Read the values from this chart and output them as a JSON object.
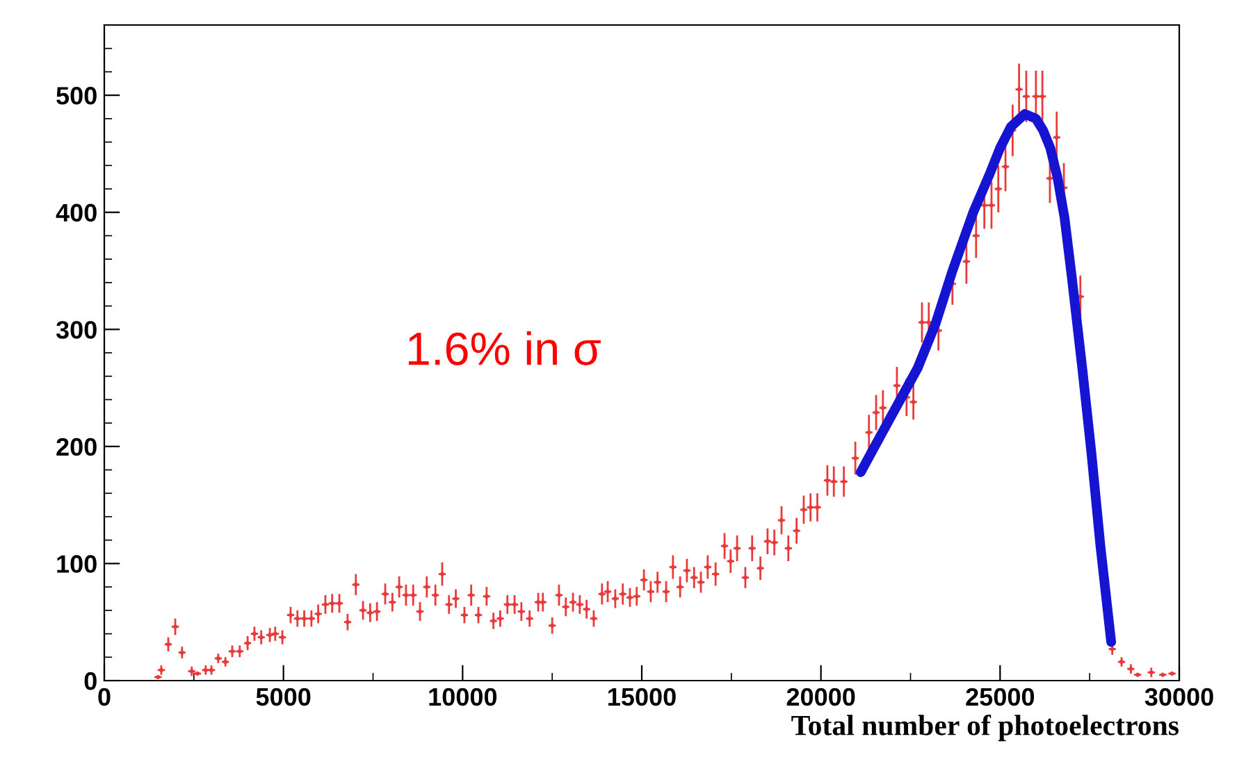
{
  "chart_data": {
    "type": "scatter",
    "xlabel": "Total number of photoelectrons",
    "xlim": [
      0,
      30000
    ],
    "ylim": [
      0,
      560
    ],
    "xticks": [
      0,
      5000,
      10000,
      15000,
      20000,
      25000,
      30000
    ],
    "yticks": [
      0,
      100,
      200,
      300,
      400,
      500
    ],
    "annotations": [
      "1.6% in σ"
    ],
    "grid": false,
    "legend": false,
    "series": [
      {
        "color": "#e83a3a",
        "x": [
          1500,
          1590,
          1785,
          1980,
          2170,
          2440,
          2600,
          2830,
          2990,
          3180,
          3380,
          3570,
          3780,
          4000,
          4190,
          4380,
          4620,
          4770,
          4970,
          5200,
          5390,
          5580,
          5780,
          5970,
          6170,
          6360,
          6560,
          6790,
          7020,
          7220,
          7420,
          7610,
          7840,
          8040,
          8230,
          8420,
          8620,
          8810,
          9000,
          9240,
          9430,
          9620,
          9810,
          10050,
          10240,
          10440,
          10670,
          10860,
          11050,
          11250,
          11450,
          11640,
          11870,
          12110,
          12240,
          12500,
          12690,
          12880,
          13080,
          13270,
          13460,
          13660,
          13890,
          14050,
          14260,
          14470,
          14670,
          14860,
          15060,
          15250,
          15440,
          15680,
          15870,
          16070,
          16260,
          16460,
          16650,
          16840,
          17060,
          17310,
          17480,
          17660,
          17890,
          18080,
          18310,
          18510,
          18700,
          18900,
          19090,
          19320,
          19520,
          19710,
          19900,
          20180,
          20360,
          20640,
          20960,
          21340,
          21540,
          21730,
          22120,
          22390,
          22580,
          22820,
          23010,
          23280,
          23670,
          24060,
          24330,
          24560,
          24760,
          24950,
          25150,
          25350,
          25530,
          25730,
          26000,
          26180,
          26390,
          26580,
          26780,
          27240,
          28130,
          28390,
          28650,
          28840,
          29220,
          29540,
          29800
        ],
        "values": [
          3,
          9,
          31,
          46,
          24,
          8,
          6,
          9,
          9,
          19,
          16,
          25,
          25,
          32,
          40,
          37,
          39,
          40,
          37,
          56,
          53,
          53,
          53,
          57,
          65,
          66,
          66,
          50,
          82,
          60,
          58,
          59,
          74,
          67,
          80,
          73,
          73,
          59,
          80,
          73,
          91,
          65,
          70,
          56,
          73,
          56,
          72,
          51,
          53,
          65,
          65,
          59,
          53,
          67,
          67,
          47,
          73,
          63,
          67,
          65,
          61,
          53,
          74,
          76,
          70,
          74,
          71,
          72,
          86,
          76,
          84,
          76,
          97,
          80,
          94,
          88,
          84,
          97,
          91,
          115,
          102,
          113,
          88,
          113,
          96,
          119,
          118,
          137,
          113,
          128,
          146,
          148,
          148,
          171,
          170,
          170,
          190,
          212,
          229,
          233,
          252,
          242,
          238,
          306,
          306,
          299,
          339,
          358,
          380,
          406,
          406,
          420,
          439,
          470,
          505,
          499,
          499,
          499,
          429,
          464,
          421,
          328,
          27,
          16,
          10,
          5,
          7,
          5,
          6
        ],
        "errors": [
          null,
          4,
          6,
          7,
          5,
          4,
          null,
          4,
          4,
          4,
          4,
          5,
          5,
          6,
          6,
          6,
          6,
          6,
          6,
          7,
          7,
          7,
          7,
          8,
          8,
          8,
          8,
          7,
          9,
          8,
          8,
          8,
          9,
          8,
          9,
          9,
          9,
          8,
          9,
          9,
          10,
          8,
          8,
          7,
          9,
          7,
          8,
          7,
          7,
          8,
          8,
          8,
          7,
          8,
          8,
          7,
          9,
          8,
          8,
          8,
          8,
          7,
          9,
          9,
          8,
          9,
          8,
          8,
          9,
          9,
          9,
          9,
          10,
          9,
          10,
          9,
          9,
          10,
          10,
          11,
          10,
          11,
          9,
          11,
          10,
          11,
          11,
          12,
          11,
          11,
          12,
          12,
          12,
          13,
          13,
          13,
          14,
          15,
          15,
          15,
          16,
          16,
          15,
          17,
          17,
          17,
          18,
          19,
          19,
          20,
          20,
          20,
          21,
          22,
          22,
          22,
          22,
          22,
          21,
          22,
          21,
          18,
          5,
          4,
          4,
          null,
          4,
          null,
          null
        ],
        "xerrors": [
          100,
          100,
          100,
          100,
          100,
          100,
          100,
          100,
          100,
          100,
          100,
          100,
          100,
          100,
          100,
          100,
          100,
          100,
          100,
          100,
          100,
          100,
          100,
          100,
          100,
          100,
          100,
          100,
          100,
          100,
          100,
          100,
          100,
          100,
          100,
          100,
          100,
          100,
          100,
          100,
          100,
          100,
          100,
          100,
          100,
          100,
          100,
          100,
          100,
          100,
          100,
          100,
          100,
          100,
          100,
          100,
          100,
          100,
          100,
          100,
          100,
          100,
          100,
          100,
          100,
          100,
          100,
          100,
          100,
          100,
          100,
          100,
          100,
          100,
          100,
          100,
          100,
          100,
          100,
          100,
          100,
          100,
          100,
          100,
          100,
          100,
          100,
          100,
          100,
          100,
          100,
          100,
          100,
          100,
          100,
          100,
          100,
          100,
          100,
          100,
          100,
          100,
          100,
          100,
          100,
          100,
          100,
          100,
          100,
          100,
          100,
          100,
          100,
          100,
          100,
          100,
          100,
          100,
          100,
          100,
          100,
          100,
          100,
          100,
          100,
          100,
          100,
          100,
          100
        ]
      },
      {
        "type": "line",
        "color": "#1414d2",
        "line_style": "solid",
        "x": [
          21110,
          21500,
          22000,
          22700,
          23200,
          23670,
          24250,
          24700,
          25000,
          25300,
          25690,
          26000,
          26200,
          26400,
          26600,
          26800,
          27000,
          27300,
          27550,
          27800,
          28100
        ],
        "values": [
          178,
          200,
          228,
          267,
          305,
          350,
          400,
          432,
          455,
          473,
          484,
          480,
          470,
          455,
          430,
          395,
          345,
          265,
          194,
          115,
          33
        ]
      }
    ]
  }
}
